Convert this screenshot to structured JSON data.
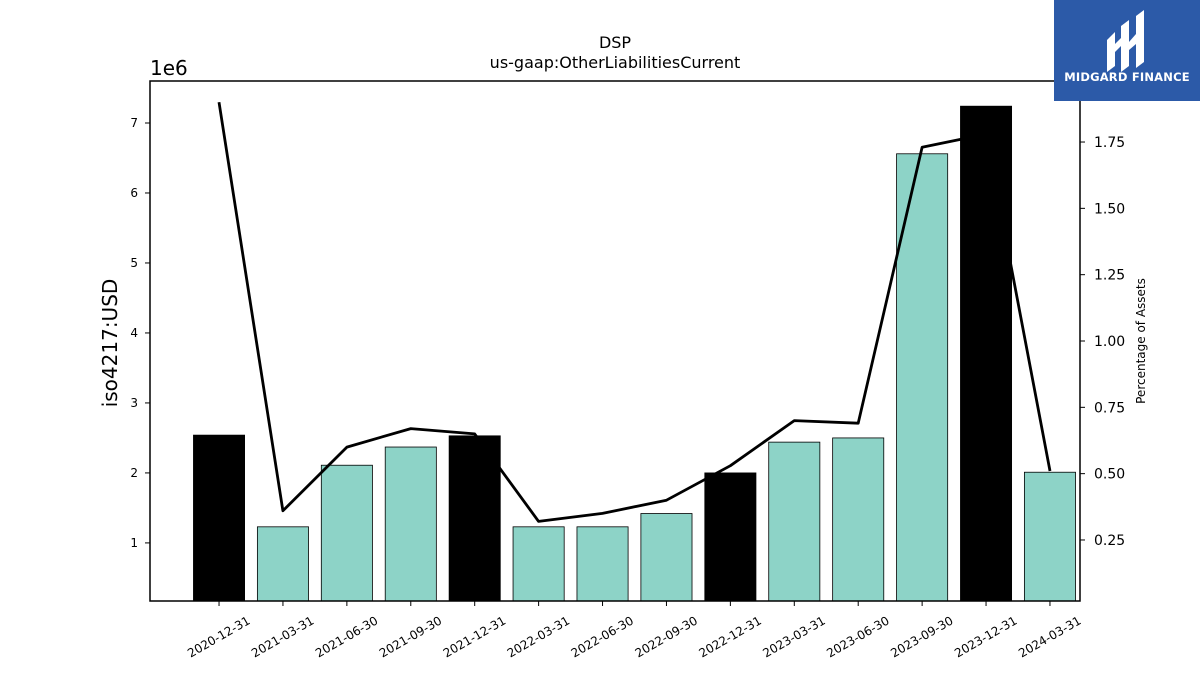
{
  "chart_data": {
    "type": "bar",
    "title": "DSP",
    "subtitle": "us-gaap:OtherLiabilitiesCurrent",
    "ylabel": "iso4217:USD",
    "y_offset_label": "1e6",
    "y2label": "Percentage of Assets",
    "categories": [
      "2020-12-31",
      "2021-03-31",
      "2021-06-30",
      "2021-09-30",
      "2021-12-31",
      "2022-03-31",
      "2022-06-30",
      "2022-09-30",
      "2022-12-31",
      "2023-03-31",
      "2023-06-30",
      "2023-09-30",
      "2023-12-31",
      "2024-03-31"
    ],
    "values": [
      2.54,
      1.23,
      2.11,
      2.37,
      2.53,
      1.23,
      1.23,
      1.42,
      2.0,
      2.44,
      2.5,
      6.56,
      7.24,
      2.01
    ],
    "bar_colors": [
      "#000000",
      "#8dd3c7",
      "#8dd3c7",
      "#8dd3c7",
      "#000000",
      "#8dd3c7",
      "#8dd3c7",
      "#8dd3c7",
      "#000000",
      "#8dd3c7",
      "#8dd3c7",
      "#8dd3c7",
      "#000000",
      "#8dd3c7"
    ],
    "line_values": [
      1.9,
      0.36,
      0.6,
      0.67,
      0.65,
      0.32,
      0.35,
      0.4,
      0.53,
      0.7,
      0.69,
      1.73,
      1.78,
      0.51
    ],
    "ylim": [
      0.17,
      7.6
    ],
    "y2lim": [
      0.02,
      1.98
    ],
    "yticks": [
      1,
      2,
      3,
      4,
      5,
      6,
      7
    ],
    "y2ticks": [
      0.25,
      0.5,
      0.75,
      1.0,
      1.25,
      1.5,
      1.75
    ],
    "y2tick_labels": [
      "0.25",
      "0.50",
      "0.75",
      "1.00",
      "1.25",
      "1.50",
      "1.75"
    ],
    "grid": false
  },
  "logo": {
    "text": "MIDGARD FINANCE",
    "bg_color": "#2c5aa8"
  }
}
